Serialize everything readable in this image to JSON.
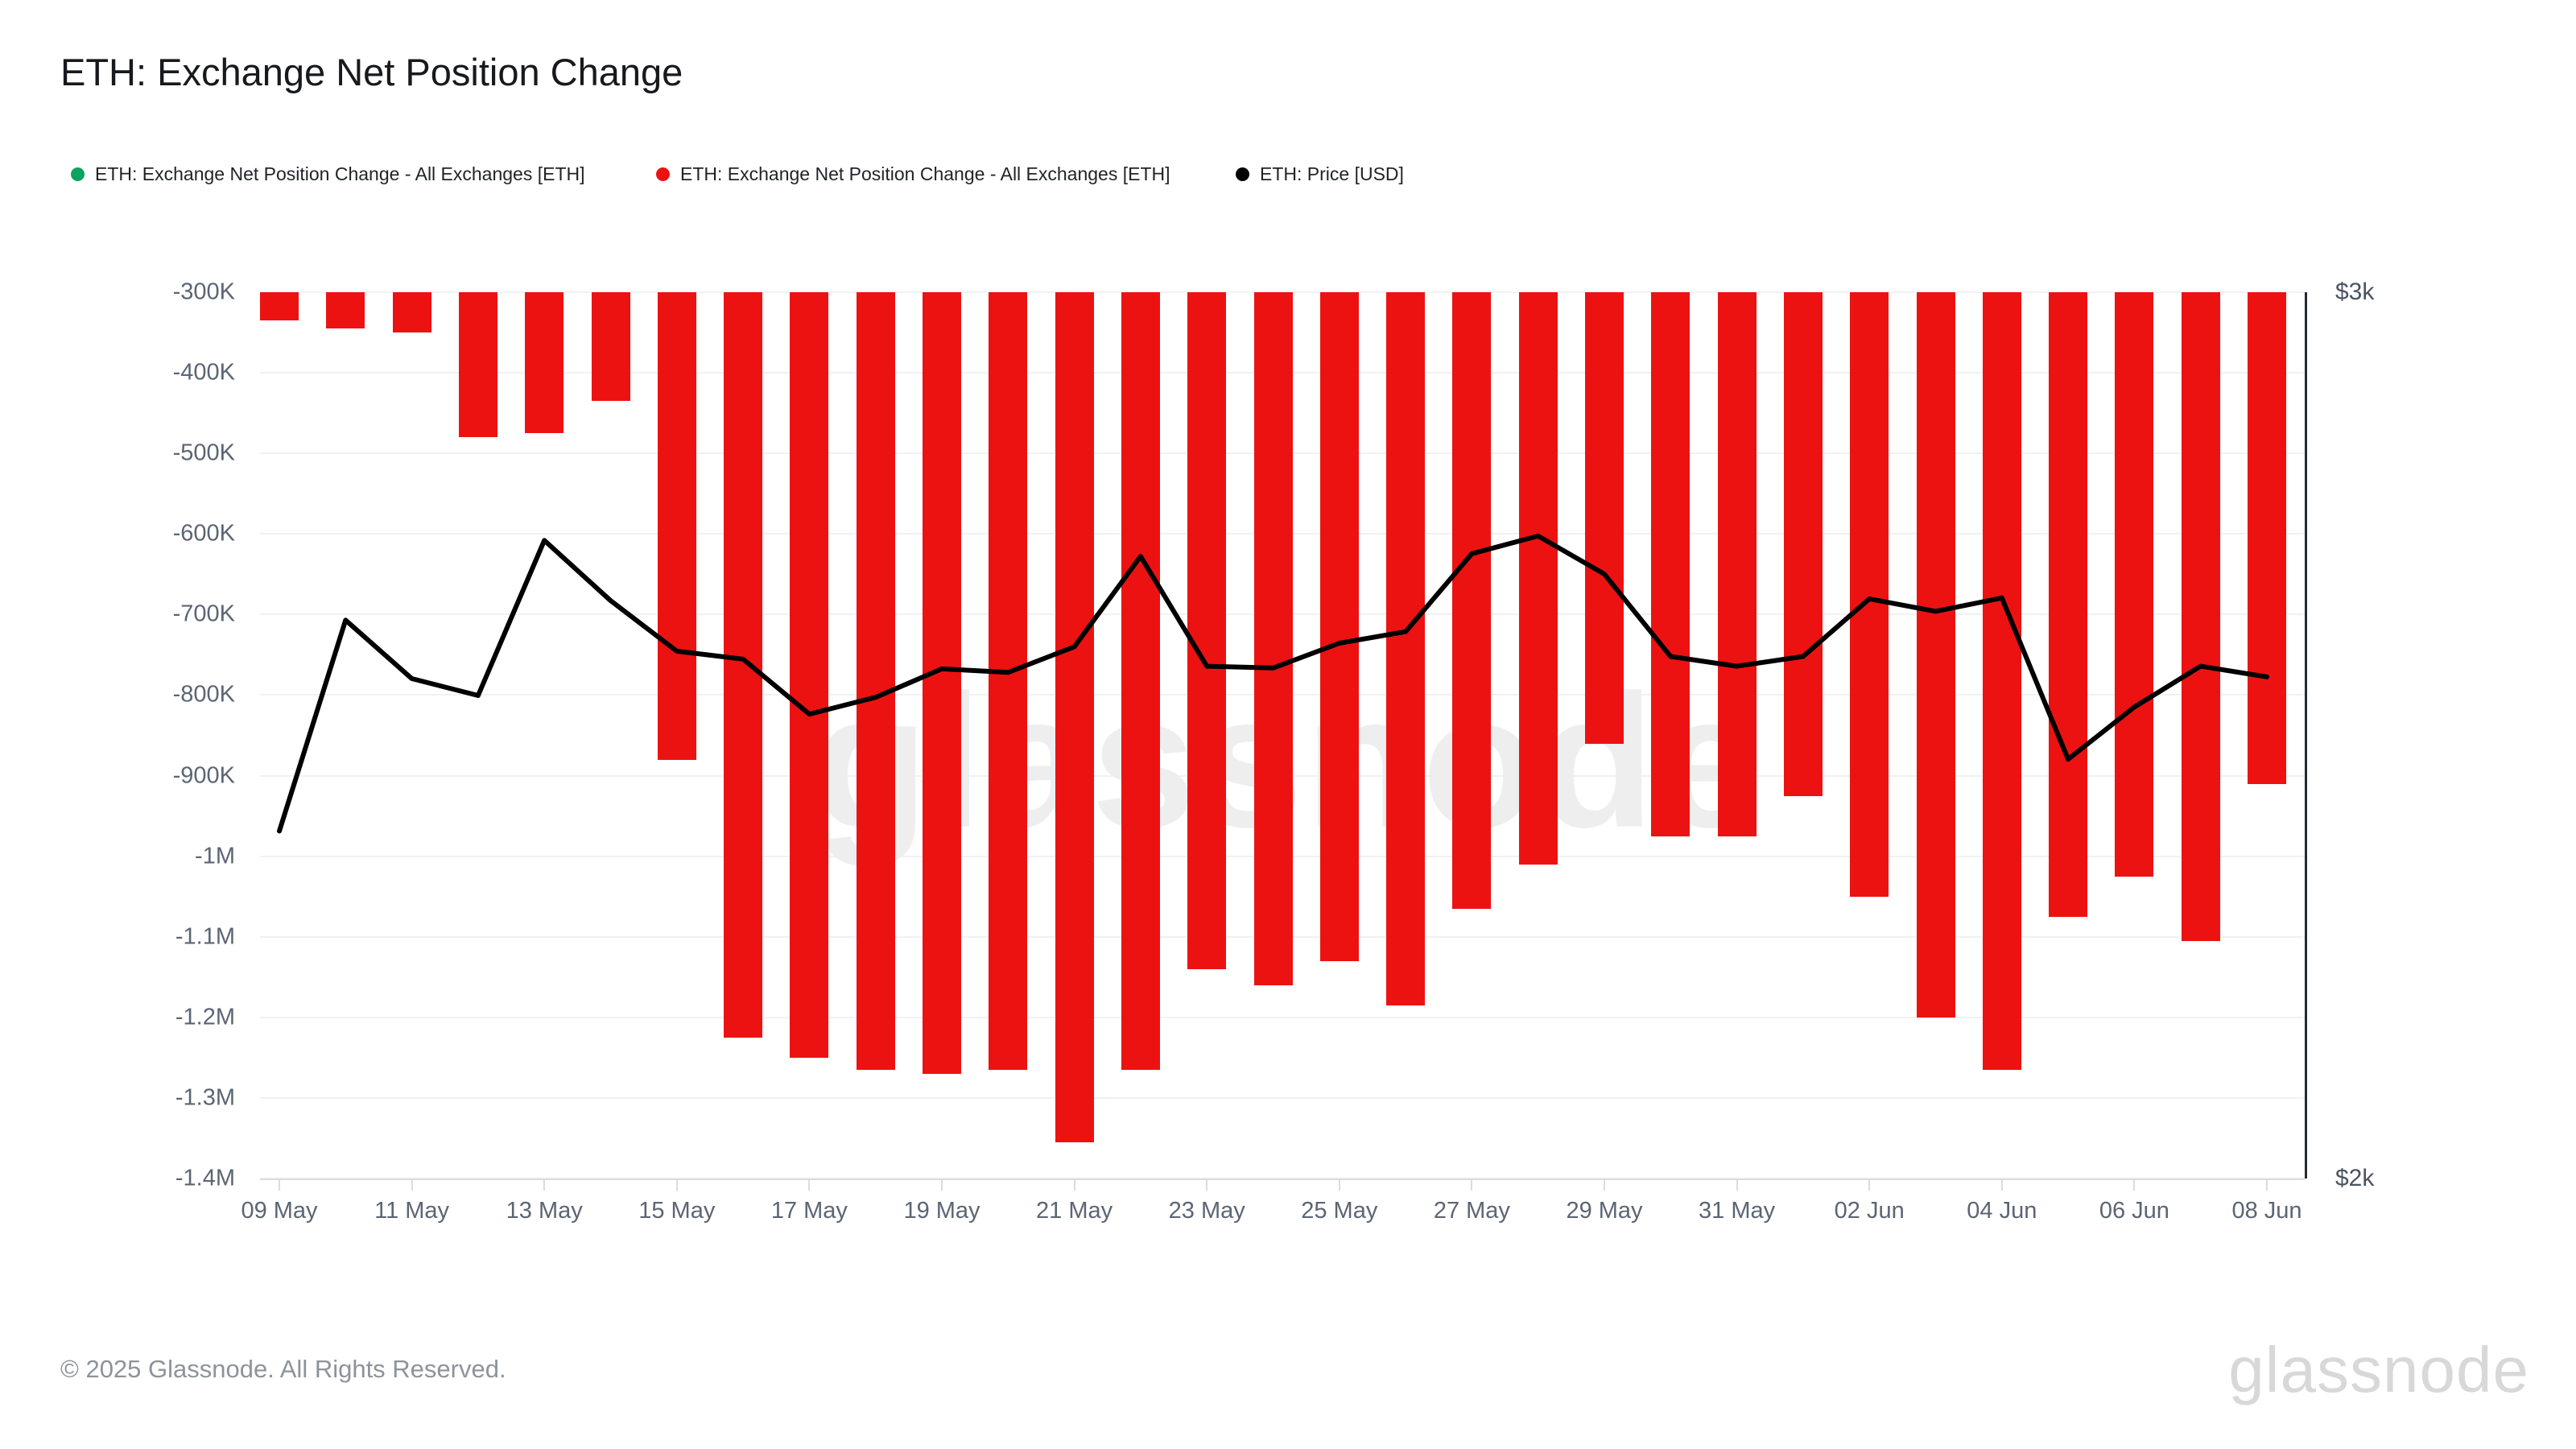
{
  "title": "ETH: Exchange Net Position Change",
  "legend": [
    {
      "label": "ETH: Exchange Net Position Change - All Exchanges [ETH]",
      "color": "#0ba360"
    },
    {
      "label": "ETH: Exchange Net Position Change - All Exchanges [ETH]",
      "color": "#ed1212"
    },
    {
      "label": "ETH: Price [USD]",
      "color": "#000000"
    }
  ],
  "footer": {
    "copyright": "© 2025 Glassnode. All Rights Reserved.",
    "brand": "glassnode",
    "watermark": "glassnode"
  },
  "chart_data": {
    "type": "combo",
    "x": [
      "09 May",
      "10 May",
      "11 May",
      "12 May",
      "13 May",
      "14 May",
      "15 May",
      "16 May",
      "17 May",
      "18 May",
      "19 May",
      "20 May",
      "21 May",
      "22 May",
      "23 May",
      "24 May",
      "25 May",
      "26 May",
      "27 May",
      "28 May",
      "29 May",
      "30 May",
      "31 May",
      "01 Jun",
      "02 Jun",
      "03 Jun",
      "04 Jun",
      "05 Jun",
      "06 Jun",
      "07 Jun",
      "08 Jun"
    ],
    "series": [
      {
        "name": "ETH: Exchange Net Position Change - All Exchanges [ETH]",
        "type": "bar",
        "color": "#ed1212",
        "y_axis": "left",
        "unit": "ETH",
        "values": [
          -335000,
          -345000,
          -350000,
          -480000,
          -475000,
          -435000,
          -880000,
          -1225000,
          -1250000,
          -1265000,
          -1270000,
          -1265000,
          -1355000,
          -1265000,
          -1140000,
          -1160000,
          -1130000,
          -1185000,
          -1065000,
          -1010000,
          -860000,
          -975000,
          -975000,
          -925000,
          -1050000,
          -1200000,
          -1265000,
          -1075000,
          -1025000,
          -1105000,
          -910000
        ]
      },
      {
        "name": "ETH: Price [USD]",
        "type": "line",
        "color": "#000000",
        "y_axis": "right",
        "unit": "USD",
        "values": [
          2392,
          2630,
          2564,
          2545,
          2720,
          2652,
          2595,
          2586,
          2524,
          2543,
          2575,
          2571,
          2600,
          2702,
          2578,
          2576,
          2604,
          2617,
          2705,
          2725,
          2682,
          2589,
          2578,
          2589,
          2654,
          2640,
          2655,
          2473,
          2532,
          2578,
          2566
        ]
      }
    ],
    "left_axis": {
      "tick_labels": [
        "-300K",
        "-400K",
        "-500K",
        "-600K",
        "-700K",
        "-800K",
        "-900K",
        "-1M",
        "-1.1M",
        "-1.2M",
        "-1.3M",
        "-1.4M"
      ],
      "min": -1400000,
      "max": -300000,
      "unit": "ETH"
    },
    "right_axis": {
      "tick_labels": [
        "$3k",
        "$2k"
      ],
      "min": 2000,
      "max": 3000,
      "unit": "USD"
    },
    "x_tick_labels": [
      "09 May",
      "11 May",
      "13 May",
      "15 May",
      "17 May",
      "19 May",
      "21 May",
      "23 May",
      "25 May",
      "27 May",
      "29 May",
      "31 May",
      "02 Jun",
      "04 Jun",
      "06 Jun",
      "08 Jun"
    ],
    "grid": "horizontal",
    "legend_position": "top-left"
  }
}
